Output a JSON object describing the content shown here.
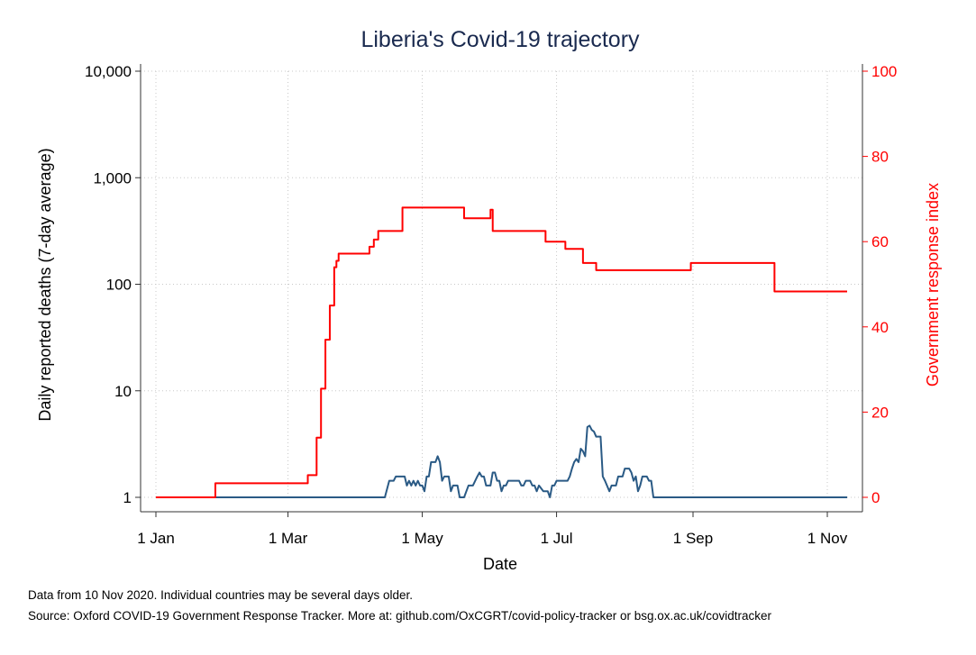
{
  "chart_data": {
    "type": "line",
    "title": "Liberia's Covid-19 trajectory",
    "xlabel": "Date",
    "ylabel_left": "Daily reported deaths (7-day average)",
    "ylabel_right": "Government response index",
    "x_ticks": [
      {
        "date": "2020-01-01",
        "label": "1 Jan"
      },
      {
        "date": "2020-03-01",
        "label": "1 Mar"
      },
      {
        "date": "2020-05-01",
        "label": "1 May"
      },
      {
        "date": "2020-07-01",
        "label": "1 Jul"
      },
      {
        "date": "2020-09-01",
        "label": "1 Sep"
      },
      {
        "date": "2020-11-01",
        "label": "1 Nov"
      }
    ],
    "xlim": [
      "2020-01-01",
      "2020-11-10"
    ],
    "y_left": {
      "scale": "log",
      "lim": [
        1,
        10000
      ],
      "ticks": [
        1,
        10,
        100,
        1000,
        10000
      ],
      "tick_labels": [
        "1",
        "10",
        "100",
        "1,000",
        "10,000"
      ]
    },
    "y_right": {
      "scale": "linear",
      "lim": [
        0,
        100
      ],
      "ticks": [
        0,
        20,
        40,
        60,
        80,
        100
      ],
      "tick_labels": [
        "0",
        "20",
        "40",
        "60",
        "80",
        "100"
      ]
    },
    "grid": true,
    "series": [
      {
        "axis": "left",
        "color": "#2a5a85",
        "step": false,
        "points": [
          [
            "2020-01-01",
            1
          ],
          [
            "2020-04-14",
            1
          ],
          [
            "2020-04-16",
            1.43
          ],
          [
            "2020-04-18",
            1.43
          ],
          [
            "2020-04-19",
            1.57
          ],
          [
            "2020-04-23",
            1.57
          ],
          [
            "2020-04-24",
            1.29
          ],
          [
            "2020-04-25",
            1.43
          ],
          [
            "2020-04-26",
            1.29
          ],
          [
            "2020-04-27",
            1.43
          ],
          [
            "2020-04-28",
            1.29
          ],
          [
            "2020-04-29",
            1.43
          ],
          [
            "2020-04-30",
            1.29
          ],
          [
            "2020-05-01",
            1.29
          ],
          [
            "2020-05-02",
            1.14
          ],
          [
            "2020-05-03",
            1.57
          ],
          [
            "2020-05-04",
            1.57
          ],
          [
            "2020-05-05",
            2.14
          ],
          [
            "2020-05-07",
            2.14
          ],
          [
            "2020-05-08",
            2.43
          ],
          [
            "2020-05-09",
            2.14
          ],
          [
            "2020-05-10",
            1.43
          ],
          [
            "2020-05-11",
            1.57
          ],
          [
            "2020-05-13",
            1.57
          ],
          [
            "2020-05-14",
            1.14
          ],
          [
            "2020-05-15",
            1.29
          ],
          [
            "2020-05-17",
            1.29
          ],
          [
            "2020-05-18",
            1
          ],
          [
            "2020-05-20",
            1
          ],
          [
            "2020-05-22",
            1.29
          ],
          [
            "2020-05-24",
            1.29
          ],
          [
            "2020-05-26",
            1.57
          ],
          [
            "2020-05-27",
            1.71
          ],
          [
            "2020-05-28",
            1.57
          ],
          [
            "2020-05-29",
            1.57
          ],
          [
            "2020-05-30",
            1.29
          ],
          [
            "2020-06-01",
            1.29
          ],
          [
            "2020-06-02",
            1.71
          ],
          [
            "2020-06-03",
            1.71
          ],
          [
            "2020-06-04",
            1.43
          ],
          [
            "2020-06-05",
            1.43
          ],
          [
            "2020-06-06",
            1.14
          ],
          [
            "2020-06-07",
            1.29
          ],
          [
            "2020-06-08",
            1.29
          ],
          [
            "2020-06-09",
            1.43
          ],
          [
            "2020-06-14",
            1.43
          ],
          [
            "2020-06-15",
            1.29
          ],
          [
            "2020-06-16",
            1.29
          ],
          [
            "2020-06-17",
            1.43
          ],
          [
            "2020-06-19",
            1.43
          ],
          [
            "2020-06-20",
            1.29
          ],
          [
            "2020-06-21",
            1.29
          ],
          [
            "2020-06-22",
            1.14
          ],
          [
            "2020-06-23",
            1.29
          ],
          [
            "2020-06-25",
            1.14
          ],
          [
            "2020-06-27",
            1.14
          ],
          [
            "2020-06-28",
            1
          ],
          [
            "2020-06-29",
            1.29
          ],
          [
            "2020-06-30",
            1.29
          ],
          [
            "2020-07-01",
            1.43
          ],
          [
            "2020-07-06",
            1.43
          ],
          [
            "2020-07-07",
            1.57
          ],
          [
            "2020-07-08",
            1.86
          ],
          [
            "2020-07-09",
            2.14
          ],
          [
            "2020-07-10",
            2.29
          ],
          [
            "2020-07-11",
            2.14
          ],
          [
            "2020-07-12",
            2.86
          ],
          [
            "2020-07-13",
            2.71
          ],
          [
            "2020-07-14",
            2.43
          ],
          [
            "2020-07-15",
            4.57
          ],
          [
            "2020-07-16",
            4.71
          ],
          [
            "2020-07-17",
            4.29
          ],
          [
            "2020-07-18",
            4.14
          ],
          [
            "2020-07-19",
            3.71
          ],
          [
            "2020-07-21",
            3.71
          ],
          [
            "2020-07-22",
            1.57
          ],
          [
            "2020-07-23",
            1.43
          ],
          [
            "2020-07-25",
            1.14
          ],
          [
            "2020-07-26",
            1.29
          ],
          [
            "2020-07-28",
            1.29
          ],
          [
            "2020-07-29",
            1.57
          ],
          [
            "2020-07-31",
            1.57
          ],
          [
            "2020-08-01",
            1.86
          ],
          [
            "2020-08-03",
            1.86
          ],
          [
            "2020-08-04",
            1.71
          ],
          [
            "2020-08-05",
            1.43
          ],
          [
            "2020-08-06",
            1.57
          ],
          [
            "2020-08-07",
            1.14
          ],
          [
            "2020-08-08",
            1.29
          ],
          [
            "2020-08-09",
            1.57
          ],
          [
            "2020-08-11",
            1.57
          ],
          [
            "2020-08-12",
            1.43
          ],
          [
            "2020-08-13",
            1.43
          ],
          [
            "2020-08-14",
            1
          ],
          [
            "2020-11-10",
            1
          ]
        ]
      },
      {
        "axis": "right",
        "color": "#ff0000",
        "step": true,
        "points": [
          [
            "2020-01-01",
            0
          ],
          [
            "2020-01-28",
            3.3
          ],
          [
            "2020-03-10",
            5.2
          ],
          [
            "2020-03-14",
            14
          ],
          [
            "2020-03-16",
            25.5
          ],
          [
            "2020-03-18",
            37
          ],
          [
            "2020-03-20",
            45
          ],
          [
            "2020-03-22",
            54
          ],
          [
            "2020-03-23",
            55.5
          ],
          [
            "2020-03-24",
            57.2
          ],
          [
            "2020-04-07",
            58.8
          ],
          [
            "2020-04-09",
            60.5
          ],
          [
            "2020-04-11",
            62.5
          ],
          [
            "2020-04-22",
            68
          ],
          [
            "2020-05-20",
            65.5
          ],
          [
            "2020-06-01",
            67.5
          ],
          [
            "2020-06-02",
            62.5
          ],
          [
            "2020-06-26",
            60
          ],
          [
            "2020-07-05",
            58.3
          ],
          [
            "2020-07-13",
            55
          ],
          [
            "2020-07-19",
            53.3
          ],
          [
            "2020-08-31",
            55
          ],
          [
            "2020-10-08",
            48.3
          ],
          [
            "2020-11-10",
            48.3
          ]
        ]
      }
    ]
  },
  "notes": [
    "Data from 10 Nov 2020. Individual countries may be several days older.",
    "Source: Oxford COVID-19 Government Response Tracker. More at: github.com/OxCGRT/covid-policy-tracker or bsg.ox.ac.uk/covidtracker"
  ]
}
